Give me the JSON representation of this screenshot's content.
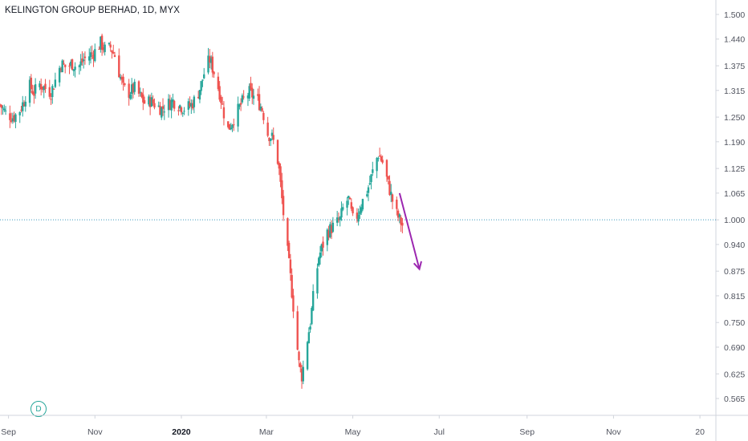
{
  "header": {
    "title": "KELINGTON GROUP BERHAD, 1D, MYX"
  },
  "badge": {
    "label": "D"
  },
  "colors": {
    "up": "#26a69a",
    "down": "#ef5350",
    "arrow": "#9c27b0",
    "hline": "#3d9bbf",
    "axis": "#d1d4dc"
  },
  "chart_data": {
    "type": "candlestick",
    "y_axis": {
      "position": "right",
      "ylim": [
        0.52,
        1.52
      ],
      "ticks": [
        1.5,
        1.44,
        1.375,
        1.315,
        1.25,
        1.19,
        1.125,
        1.065,
        1.0,
        0.94,
        0.875,
        0.815,
        0.75,
        0.69,
        0.625,
        0.565
      ],
      "tick_labels": [
        "1.500",
        "1.440",
        "1.375",
        "1.315",
        "1.250",
        "1.190",
        "1.125",
        "1.065",
        "1.000",
        "0.940",
        "0.875",
        "0.815",
        "0.750",
        "0.690",
        "0.625",
        "0.565"
      ]
    },
    "x_axis": {
      "ticks": [
        {
          "label": "Sep",
          "date": "2019-09-01",
          "bold": false
        },
        {
          "label": "Nov",
          "date": "2019-11-01",
          "bold": false
        },
        {
          "label": "2020",
          "date": "2020-01-01",
          "bold": true
        },
        {
          "label": "Mar",
          "date": "2020-03-01",
          "bold": false
        },
        {
          "label": "May",
          "date": "2020-05-01",
          "bold": false
        },
        {
          "label": "Jul",
          "date": "2020-07-01",
          "bold": false
        },
        {
          "label": "Sep",
          "date": "2020-09-01",
          "bold": false
        },
        {
          "label": "Nov",
          "date": "2020-11-01",
          "bold": false
        },
        {
          "label": "20",
          "date": "2021-01-01",
          "bold": false
        }
      ]
    },
    "horizontal_line": {
      "value": 1.0,
      "style": "dotted"
    },
    "arrow_annotation": {
      "from": {
        "date": "2020-06-03",
        "value": 1.065
      },
      "to": {
        "date": "2020-06-17",
        "value": 0.88
      }
    },
    "close_path": [
      [
        "2019-08-26",
        1.28
      ],
      [
        "2019-08-30",
        1.26
      ],
      [
        "2019-09-04",
        1.25
      ],
      [
        "2019-09-08",
        1.26
      ],
      [
        "2019-09-12",
        1.29
      ],
      [
        "2019-09-15",
        1.33
      ],
      [
        "2019-09-19",
        1.31
      ],
      [
        "2019-09-23",
        1.33
      ],
      [
        "2019-09-27",
        1.32
      ],
      [
        "2019-10-01",
        1.31
      ],
      [
        "2019-10-05",
        1.35
      ],
      [
        "2019-10-08",
        1.38
      ],
      [
        "2019-10-12",
        1.37
      ],
      [
        "2019-10-16",
        1.38
      ],
      [
        "2019-10-20",
        1.37
      ],
      [
        "2019-10-24",
        1.39
      ],
      [
        "2019-10-28",
        1.4
      ],
      [
        "2019-11-01",
        1.41
      ],
      [
        "2019-11-05",
        1.43
      ],
      [
        "2019-11-09",
        1.41
      ],
      [
        "2019-11-12",
        1.42
      ],
      [
        "2019-11-15",
        1.4
      ],
      [
        "2019-11-18",
        1.36
      ],
      [
        "2019-11-21",
        1.32
      ],
      [
        "2019-11-25",
        1.31
      ],
      [
        "2019-11-29",
        1.32
      ],
      [
        "2019-12-03",
        1.3
      ],
      [
        "2019-12-07",
        1.28
      ],
      [
        "2019-12-10",
        1.29
      ],
      [
        "2019-12-14",
        1.28
      ],
      [
        "2019-12-18",
        1.27
      ],
      [
        "2019-12-22",
        1.28
      ],
      [
        "2019-12-26",
        1.29
      ],
      [
        "2019-12-30",
        1.28
      ],
      [
        "2020-01-04",
        1.27
      ],
      [
        "2020-01-08",
        1.28
      ],
      [
        "2020-01-12",
        1.3
      ],
      [
        "2020-01-15",
        1.33
      ],
      [
        "2020-01-18",
        1.37
      ],
      [
        "2020-01-21",
        1.39
      ],
      [
        "2020-01-24",
        1.36
      ],
      [
        "2020-01-28",
        1.31
      ],
      [
        "2020-01-31",
        1.26
      ],
      [
        "2020-02-03",
        1.22
      ],
      [
        "2020-02-06",
        1.24
      ],
      [
        "2020-02-09",
        1.26
      ],
      [
        "2020-02-12",
        1.28
      ],
      [
        "2020-02-15",
        1.3
      ],
      [
        "2020-02-18",
        1.31
      ],
      [
        "2020-02-21",
        1.3
      ],
      [
        "2020-02-24",
        1.29
      ],
      [
        "2020-02-27",
        1.27
      ],
      [
        "2020-03-02",
        1.21
      ],
      [
        "2020-03-05",
        1.2
      ],
      [
        "2020-03-08",
        1.17
      ],
      [
        "2020-03-10",
        1.12
      ],
      [
        "2020-03-12",
        1.05
      ],
      [
        "2020-03-14",
        0.98
      ],
      [
        "2020-03-16",
        0.92
      ],
      [
        "2020-03-18",
        0.86
      ],
      [
        "2020-03-20",
        0.79
      ],
      [
        "2020-03-22",
        0.72
      ],
      [
        "2020-03-24",
        0.65
      ],
      [
        "2020-03-26",
        0.62
      ],
      [
        "2020-03-28",
        0.66
      ],
      [
        "2020-03-30",
        0.71
      ],
      [
        "2020-04-01",
        0.75
      ],
      [
        "2020-04-03",
        0.81
      ],
      [
        "2020-04-05",
        0.86
      ],
      [
        "2020-04-07",
        0.91
      ],
      [
        "2020-04-10",
        0.94
      ],
      [
        "2020-04-13",
        0.97
      ],
      [
        "2020-04-16",
        0.98
      ],
      [
        "2020-04-19",
        0.99
      ],
      [
        "2020-04-22",
        1.0
      ],
      [
        "2020-04-25",
        1.04
      ],
      [
        "2020-04-28",
        1.05
      ],
      [
        "2020-05-01",
        1.0
      ],
      [
        "2020-05-04",
        1.01
      ],
      [
        "2020-05-07",
        1.04
      ],
      [
        "2020-05-10",
        1.06
      ],
      [
        "2020-05-13",
        1.09
      ],
      [
        "2020-05-16",
        1.13
      ],
      [
        "2020-05-19",
        1.16
      ],
      [
        "2020-05-22",
        1.14
      ],
      [
        "2020-05-25",
        1.1
      ],
      [
        "2020-05-28",
        1.06
      ],
      [
        "2020-05-31",
        1.02
      ],
      [
        "2020-06-03",
        1.0
      ],
      [
        "2020-06-06",
        0.98
      ]
    ]
  }
}
